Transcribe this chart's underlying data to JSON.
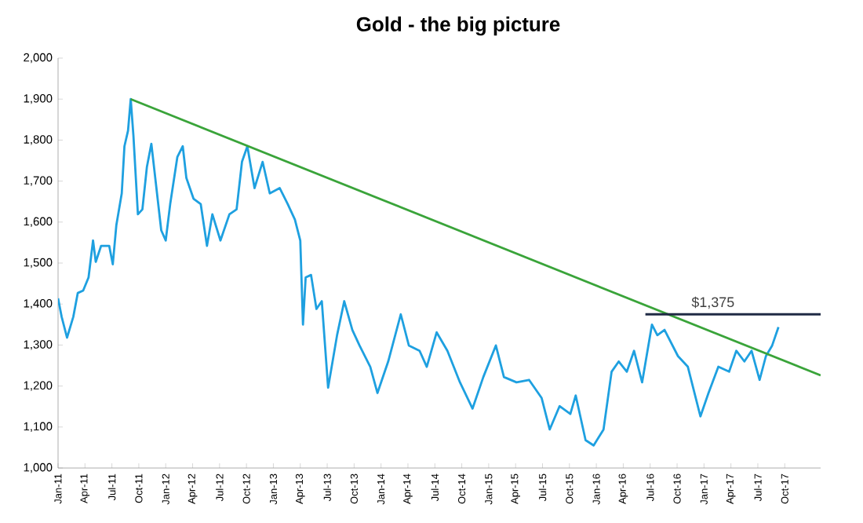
{
  "chart_data": {
    "type": "line",
    "title": "Gold - the big picture",
    "xlim": [
      "2011-01-01",
      "2018-02-01"
    ],
    "xticks": [
      {
        "value": "2011-01-01",
        "label": "Jan-11"
      },
      {
        "value": "2011-04-01",
        "label": "Apr-11"
      },
      {
        "value": "2011-07-01",
        "label": "Jul-11"
      },
      {
        "value": "2011-10-01",
        "label": "Oct-11"
      },
      {
        "value": "2012-01-01",
        "label": "Jan-12"
      },
      {
        "value": "2012-04-01",
        "label": "Apr-12"
      },
      {
        "value": "2012-07-01",
        "label": "Jul-12"
      },
      {
        "value": "2012-10-01",
        "label": "Oct-12"
      },
      {
        "value": "2013-01-01",
        "label": "Jan-13"
      },
      {
        "value": "2013-04-01",
        "label": "Apr-13"
      },
      {
        "value": "2013-07-01",
        "label": "Jul-13"
      },
      {
        "value": "2013-10-01",
        "label": "Oct-13"
      },
      {
        "value": "2014-01-01",
        "label": "Jan-14"
      },
      {
        "value": "2014-04-01",
        "label": "Apr-14"
      },
      {
        "value": "2014-07-01",
        "label": "Jul-14"
      },
      {
        "value": "2014-10-01",
        "label": "Oct-14"
      },
      {
        "value": "2015-01-01",
        "label": "Jan-15"
      },
      {
        "value": "2015-04-01",
        "label": "Apr-15"
      },
      {
        "value": "2015-07-01",
        "label": "Jul-15"
      },
      {
        "value": "2015-10-01",
        "label": "Oct-15"
      },
      {
        "value": "2016-01-01",
        "label": "Jan-16"
      },
      {
        "value": "2016-04-01",
        "label": "Apr-16"
      },
      {
        "value": "2016-07-01",
        "label": "Jul-16"
      },
      {
        "value": "2016-10-01",
        "label": "Oct-16"
      },
      {
        "value": "2017-01-01",
        "label": "Jan-17"
      },
      {
        "value": "2017-04-01",
        "label": "Apr-17"
      },
      {
        "value": "2017-07-01",
        "label": "Jul-17"
      },
      {
        "value": "2017-10-01",
        "label": "Oct-17"
      }
    ],
    "ylim": [
      1000,
      2000
    ],
    "yticks": [
      {
        "value": 1000,
        "label": "1,000"
      },
      {
        "value": 1100,
        "label": "1,100"
      },
      {
        "value": 1200,
        "label": "1,200"
      },
      {
        "value": 1300,
        "label": "1,300"
      },
      {
        "value": 1400,
        "label": "1,400"
      },
      {
        "value": 1500,
        "label": "1,500"
      },
      {
        "value": 1600,
        "label": "1,600"
      },
      {
        "value": 1700,
        "label": "1,700"
      },
      {
        "value": 1800,
        "label": "1,800"
      },
      {
        "value": 1900,
        "label": "1,900"
      },
      {
        "value": 2000,
        "label": "2,000"
      }
    ],
    "grid": false,
    "marker": "none",
    "line_style": "solid",
    "annotations": [
      {
        "text": "$1,375",
        "x": "2017-02-01",
        "y": 1375
      }
    ],
    "series": [
      {
        "color": "#1ea0e0",
        "x": [
          "2011-01-01",
          "2011-01-13",
          "2011-02-01",
          "2011-02-22",
          "2011-03-07",
          "2011-03-25",
          "2011-04-13",
          "2011-04-28",
          "2011-05-07",
          "2011-05-25",
          "2011-06-22",
          "2011-07-04",
          "2011-07-16",
          "2011-08-04",
          "2011-08-13",
          "2011-08-25",
          "2011-09-04",
          "2011-09-13",
          "2011-09-28",
          "2011-10-13",
          "2011-10-28",
          "2011-11-13",
          "2011-11-28",
          "2011-12-16",
          "2012-01-01",
          "2012-01-16",
          "2012-02-10",
          "2012-02-28",
          "2012-03-10",
          "2012-04-04",
          "2012-04-28",
          "2012-05-19",
          "2012-06-07",
          "2012-07-04",
          "2012-08-04",
          "2012-08-28",
          "2012-09-16",
          "2012-10-04",
          "2012-10-28",
          "2012-11-25",
          "2012-12-19",
          "2013-01-22",
          "2013-02-19",
          "2013-03-13",
          "2013-04-01",
          "2013-04-10",
          "2013-04-19",
          "2013-05-07",
          "2013-05-25",
          "2013-06-13",
          "2013-07-04",
          "2013-08-04",
          "2013-08-28",
          "2013-09-25",
          "2013-10-19",
          "2013-11-25",
          "2013-12-19",
          "2014-01-25",
          "2014-03-07",
          "2014-04-04",
          "2014-05-10",
          "2014-06-04",
          "2014-07-07",
          "2014-08-13",
          "2014-09-25",
          "2014-11-07",
          "2014-12-13",
          "2015-01-25",
          "2015-02-22",
          "2015-04-04",
          "2015-05-16",
          "2015-06-28",
          "2015-07-25",
          "2015-08-28",
          "2015-10-04",
          "2015-10-22",
          "2015-11-25",
          "2015-12-22",
          "2016-01-25",
          "2016-02-22",
          "2016-03-16",
          "2016-04-13",
          "2016-05-07",
          "2016-06-04",
          "2016-07-07",
          "2016-07-25",
          "2016-08-19",
          "2016-10-04",
          "2016-11-07",
          "2016-12-19",
          "2017-01-16",
          "2017-02-19",
          "2017-03-25",
          "2017-04-19",
          "2017-05-16",
          "2017-06-10",
          "2017-07-07",
          "2017-07-28",
          "2017-08-19",
          "2017-09-10"
        ],
        "values": [
          1414,
          1369,
          1318,
          1369,
          1427,
          1433,
          1465,
          1555,
          1503,
          1542,
          1542,
          1497,
          1593,
          1670,
          1785,
          1823,
          1900,
          1811,
          1619,
          1631,
          1734,
          1791,
          1695,
          1580,
          1555,
          1644,
          1759,
          1785,
          1708,
          1657,
          1644,
          1542,
          1619,
          1555,
          1619,
          1631,
          1747,
          1785,
          1683,
          1747,
          1670,
          1683,
          1644,
          1606,
          1555,
          1350,
          1465,
          1471,
          1388,
          1407,
          1196,
          1324,
          1407,
          1337,
          1299,
          1247,
          1183,
          1260,
          1375,
          1299,
          1286,
          1247,
          1331,
          1286,
          1209,
          1145,
          1222,
          1299,
          1222,
          1209,
          1215,
          1171,
          1094,
          1151,
          1132,
          1177,
          1068,
          1055,
          1094,
          1235,
          1260,
          1235,
          1286,
          1209,
          1350,
          1324,
          1337,
          1273,
          1247,
          1126,
          1183,
          1247,
          1235,
          1286,
          1260,
          1286,
          1215,
          1273,
          1299,
          1344
        ]
      },
      {
        "color": "#3aa43a",
        "x": [
          "2011-09-04",
          "2018-02-01"
        ],
        "values": [
          1900,
          1226
        ]
      },
      {
        "color": "#1f2a44",
        "x": [
          "2016-06-15",
          "2018-02-01"
        ],
        "values": [
          1375,
          1375
        ]
      }
    ]
  }
}
